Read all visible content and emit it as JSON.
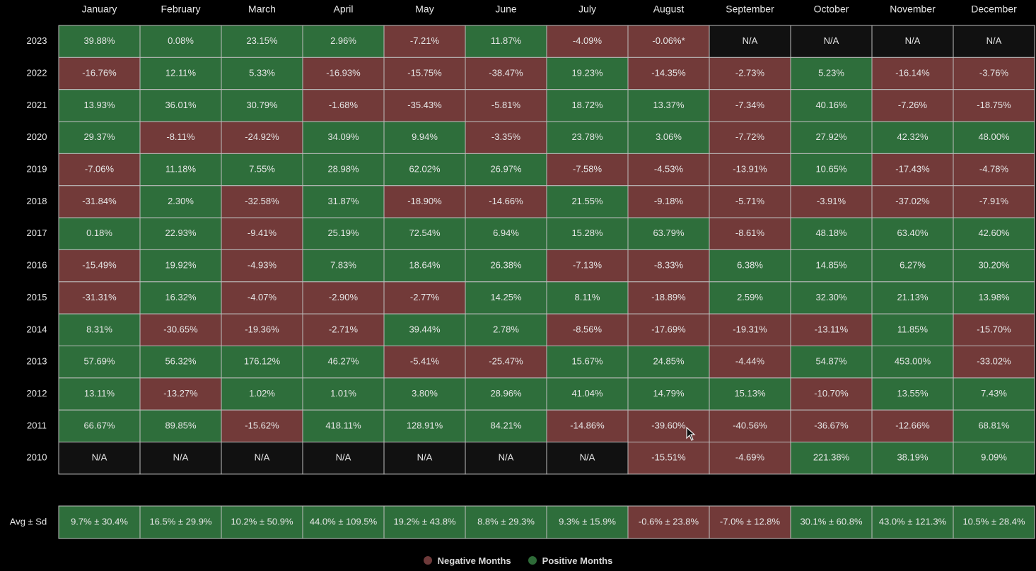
{
  "chart_data": {
    "type": "heatmap",
    "months": [
      "January",
      "February",
      "March",
      "April",
      "May",
      "June",
      "July",
      "August",
      "September",
      "October",
      "November",
      "December"
    ],
    "years": [
      "2023",
      "2022",
      "2021",
      "2020",
      "2019",
      "2018",
      "2017",
      "2016",
      "2015",
      "2014",
      "2013",
      "2012",
      "2011",
      "2010"
    ],
    "cells": [
      [
        "39.88%",
        "0.08%",
        "23.15%",
        "2.96%",
        "-7.21%",
        "11.87%",
        "-4.09%",
        "-0.06%*",
        "N/A",
        "N/A",
        "N/A",
        "N/A"
      ],
      [
        "-16.76%",
        "12.11%",
        "5.33%",
        "-16.93%",
        "-15.75%",
        "-38.47%",
        "19.23%",
        "-14.35%",
        "-2.73%",
        "5.23%",
        "-16.14%",
        "-3.76%"
      ],
      [
        "13.93%",
        "36.01%",
        "30.79%",
        "-1.68%",
        "-35.43%",
        "-5.81%",
        "18.72%",
        "13.37%",
        "-7.34%",
        "40.16%",
        "-7.26%",
        "-18.75%"
      ],
      [
        "29.37%",
        "-8.11%",
        "-24.92%",
        "34.09%",
        "9.94%",
        "-3.35%",
        "23.78%",
        "3.06%",
        "-7.72%",
        "27.92%",
        "42.32%",
        "48.00%"
      ],
      [
        "-7.06%",
        "11.18%",
        "7.55%",
        "28.98%",
        "62.02%",
        "26.97%",
        "-7.58%",
        "-4.53%",
        "-13.91%",
        "10.65%",
        "-17.43%",
        "-4.78%"
      ],
      [
        "-31.84%",
        "2.30%",
        "-32.58%",
        "31.87%",
        "-18.90%",
        "-14.66%",
        "21.55%",
        "-9.18%",
        "-5.71%",
        "-3.91%",
        "-37.02%",
        "-7.91%"
      ],
      [
        "0.18%",
        "22.93%",
        "-9.41%",
        "25.19%",
        "72.54%",
        "6.94%",
        "15.28%",
        "63.79%",
        "-8.61%",
        "48.18%",
        "63.40%",
        "42.60%"
      ],
      [
        "-15.49%",
        "19.92%",
        "-4.93%",
        "7.83%",
        "18.64%",
        "26.38%",
        "-7.13%",
        "-8.33%",
        "6.38%",
        "14.85%",
        "6.27%",
        "30.20%"
      ],
      [
        "-31.31%",
        "16.32%",
        "-4.07%",
        "-2.90%",
        "-2.77%",
        "14.25%",
        "8.11%",
        "-18.89%",
        "2.59%",
        "32.30%",
        "21.13%",
        "13.98%"
      ],
      [
        "8.31%",
        "-30.65%",
        "-19.36%",
        "-2.71%",
        "39.44%",
        "2.78%",
        "-8.56%",
        "-17.69%",
        "-19.31%",
        "-13.11%",
        "11.85%",
        "-15.70%"
      ],
      [
        "57.69%",
        "56.32%",
        "176.12%",
        "46.27%",
        "-5.41%",
        "-25.47%",
        "15.67%",
        "24.85%",
        "-4.44%",
        "54.87%",
        "453.00%",
        "-33.02%"
      ],
      [
        "13.11%",
        "-13.27%",
        "1.02%",
        "1.01%",
        "3.80%",
        "28.96%",
        "41.04%",
        "14.79%",
        "15.13%",
        "-10.70%",
        "13.55%",
        "7.43%"
      ],
      [
        "66.67%",
        "89.85%",
        "-15.62%",
        "418.11%",
        "128.91%",
        "84.21%",
        "-14.86%",
        "-39.60%",
        "-40.56%",
        "-36.67%",
        "-12.66%",
        "68.81%"
      ],
      [
        "N/A",
        "N/A",
        "N/A",
        "N/A",
        "N/A",
        "N/A",
        "N/A",
        "-15.51%",
        "-4.69%",
        "221.38%",
        "38.19%",
        "9.09%"
      ]
    ],
    "summary_label": "Avg ± Sd",
    "summary": [
      "9.7% ± 30.4%",
      "16.5% ± 29.9%",
      "10.2% ± 50.9%",
      "44.0% ± 109.5%",
      "19.2% ± 43.8%",
      "8.8% ± 29.3%",
      "9.3% ± 15.9%",
      "-0.6% ± 23.8%",
      "-7.0% ± 12.8%",
      "30.1% ± 60.8%",
      "43.0% ± 121.3%",
      "10.5% ± 28.4%"
    ],
    "legend": [
      {
        "label": "Negative Months",
        "color": "#6e3a3a"
      },
      {
        "label": "Positive Months",
        "color": "#2e6b38"
      }
    ],
    "colors": {
      "negative": "#723a39",
      "positive": "#2e6e3b",
      "na": "#111111",
      "grid": "#bdbdbd",
      "background": "#000000",
      "text": "#e6e6e6"
    }
  }
}
